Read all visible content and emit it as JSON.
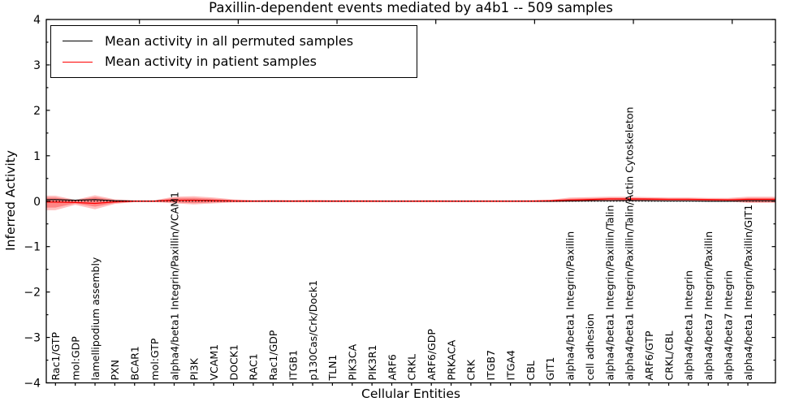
{
  "chart_data": {
    "type": "line",
    "title": "Paxillin-dependent events mediated by a4b1 -- 509 samples",
    "xlabel": "Cellular Entities",
    "ylabel": "Inferred Activity",
    "ylim": [
      -4,
      4
    ],
    "yticks": [
      4,
      3,
      2,
      1,
      0,
      -1,
      -2,
      -3,
      -4
    ],
    "grid": false,
    "legend_position": "upper-left",
    "categories": [
      "Rac1/GTP",
      "mol:GDP",
      "lamellipodium assembly",
      "PXN",
      "BCAR1",
      "mol:GTP",
      "alpha4/beta1 Integrin/Paxillin/VCAM1",
      "PI3K",
      "VCAM1",
      "DOCK1",
      "RAC1",
      "Rac1/GDP",
      "ITGB1",
      "p130Cas/Crk/Dock1",
      "TLN1",
      "PIK3CA",
      "PIK3R1",
      "ARF6",
      "CRKL",
      "ARF6/GDP",
      "PRKACA",
      "CRK",
      "ITGB7",
      "ITGA4",
      "CBL",
      "GIT1",
      "alpha4/beta1 Integrin/Paxillin",
      "cell adhesion",
      "alpha4/beta1 Integrin/Paxillin/Talin",
      "alpha4/beta1 Integrin/Paxillin/Talin/Actin Cytoskeleton",
      "ARF6/GTP",
      "CRKL/CBL",
      "alpha4/beta1 Integrin",
      "alpha4/beta7 Integrin/Paxillin",
      "alpha4/beta7 Integrin",
      "alpha4/beta1 Integrin/Paxillin/GIT1"
    ],
    "series": [
      {
        "name": "Mean activity in all permuted samples",
        "color": "#000000",
        "values": [
          0.035,
          0.02,
          0.035,
          0.01,
          0.005,
          0.005,
          0.02,
          0.025,
          0.015,
          0.005,
          0,
          0,
          0,
          0,
          0,
          0,
          0,
          0,
          0,
          0,
          0,
          0,
          0,
          0,
          0,
          0,
          0.005,
          0.01,
          0.01,
          0.015,
          0.01,
          0.005,
          0.005,
          0,
          0,
          0.01
        ]
      },
      {
        "name": "Mean activity in patient samples",
        "color": "#ff0000",
        "values": [
          -0.02,
          -0.03,
          -0.05,
          -0.015,
          0,
          0,
          0.02,
          0.02,
          0.01,
          0.005,
          0,
          0,
          0,
          0,
          0,
          0,
          0,
          0,
          0,
          0,
          0,
          0,
          0,
          0,
          0,
          0.01,
          0.025,
          0.035,
          0.05,
          0.05,
          0.045,
          0.04,
          0.04,
          0.035,
          0.03,
          0.04
        ]
      }
    ],
    "bands": [
      {
        "name": "patient-sample-activity-outer-band",
        "color": "#ff0000",
        "opacity": 0.25,
        "upper": [
          0.12,
          0.03,
          0.13,
          0.04,
          0.02,
          0.02,
          0.1,
          0.11,
          0.08,
          0.04,
          0.025,
          0.03,
          0.025,
          0.03,
          0.025,
          0.025,
          0.025,
          0.02,
          0.02,
          0.025,
          0.02,
          0.02,
          0.02,
          0.02,
          0.025,
          0.03,
          0.08,
          0.09,
          0.1,
          0.1,
          0.09,
          0.08,
          0.08,
          0.07,
          0.07,
          0.1
        ],
        "lower": [
          -0.2,
          -0.08,
          -0.18,
          -0.06,
          -0.02,
          -0.02,
          -0.05,
          -0.07,
          -0.05,
          -0.03,
          -0.02,
          -0.02,
          -0.02,
          -0.02,
          -0.02,
          -0.02,
          -0.02,
          -0.02,
          -0.02,
          -0.02,
          -0.02,
          -0.02,
          -0.02,
          -0.02,
          -0.02,
          -0.02,
          -0.02,
          -0.01,
          0,
          0,
          0,
          0,
          0,
          -0.005,
          -0.01,
          -0.04
        ]
      },
      {
        "name": "patient-sample-activity-inner-band",
        "color": "#ff0000",
        "opacity": 0.3,
        "upper": [
          0.08,
          0.02,
          0.09,
          0.025,
          0.012,
          0.012,
          0.07,
          0.075,
          0.055,
          0.025,
          0.015,
          0.018,
          0.015,
          0.018,
          0.015,
          0.015,
          0.015,
          0.012,
          0.012,
          0.015,
          0.012,
          0.012,
          0.012,
          0.012,
          0.015,
          0.02,
          0.055,
          0.065,
          0.075,
          0.075,
          0.065,
          0.06,
          0.06,
          0.05,
          0.05,
          0.07
        ],
        "lower": [
          -0.14,
          -0.05,
          -0.12,
          -0.04,
          -0.012,
          -0.012,
          -0.03,
          -0.045,
          -0.03,
          -0.02,
          -0.012,
          -0.012,
          -0.012,
          -0.012,
          -0.012,
          -0.012,
          -0.012,
          -0.012,
          -0.012,
          -0.012,
          -0.012,
          -0.012,
          -0.012,
          -0.012,
          -0.012,
          -0.012,
          -0.005,
          0,
          0.01,
          0.01,
          0.008,
          0.008,
          0.008,
          0.002,
          -0.002,
          -0.02
        ]
      }
    ],
    "zero_line": {
      "value": 0,
      "style": "dotted",
      "color": "#000000"
    }
  }
}
